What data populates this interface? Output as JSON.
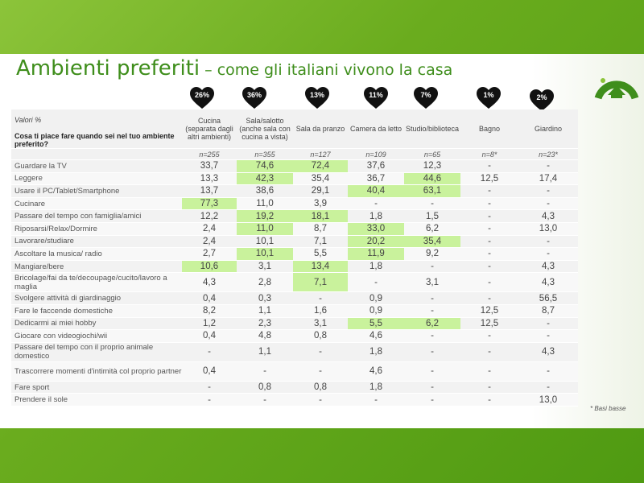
{
  "title": {
    "main": "Ambienti preferiti",
    "sub": " – come gli italiani vivono la casa"
  },
  "logo_colors": {
    "ring": "#3f8e1c",
    "house": "#ffffff"
  },
  "hearts": [
    "26%",
    "36%",
    "13%",
    "11%",
    "7%",
    "1%",
    "2%"
  ],
  "table": {
    "label_header": {
      "valori": "Valori  %",
      "question": "Cosa ti piace fare quando sei nel tuo ambiente preferito?"
    },
    "columns": [
      "Cucina (separata dagli altri ambienti)",
      "Sala/salotto (anche sala con cucina a vista)",
      "Sala da pranzo",
      "Camera da letto",
      "Studio/biblioteca",
      "Bagno",
      "Giardino"
    ],
    "bases": [
      "n=255",
      "n=355",
      "n=127",
      "n=109",
      "n=65",
      "n=8*",
      "n=23*"
    ],
    "rows": [
      {
        "label": "Guardare la TV",
        "values": [
          "33,7",
          "74,6",
          "72,4",
          "37,6",
          "12,3",
          "-",
          "-"
        ],
        "hl": [
          1,
          2
        ]
      },
      {
        "label": "Leggere",
        "values": [
          "13,3",
          "42,3",
          "35,4",
          "36,7",
          "44,6",
          "12,5",
          "17,4"
        ],
        "hl": [
          1,
          4
        ]
      },
      {
        "label": "Usare il PC/Tablet/Smartphone",
        "values": [
          "13,7",
          "38,6",
          "29,1",
          "40,4",
          "63,1",
          "-",
          "-"
        ],
        "hl": [
          3,
          4
        ]
      },
      {
        "label": "Cucinare",
        "values": [
          "77,3",
          "11,0",
          "3,9",
          "-",
          "-",
          "-",
          "-"
        ],
        "hl": [
          0
        ]
      },
      {
        "label": "Passare del tempo con famiglia/amici",
        "values": [
          "12,2",
          "19,2",
          "18,1",
          "1,8",
          "1,5",
          "-",
          "4,3"
        ],
        "hl": [
          1,
          2
        ]
      },
      {
        "label": "Riposarsi/Relax/Dormire",
        "values": [
          "2,4",
          "11,0",
          "8,7",
          "33,0",
          "6,2",
          "-",
          "13,0"
        ],
        "hl": [
          1,
          3
        ]
      },
      {
        "label": "Lavorare/studiare",
        "values": [
          "2,4",
          "10,1",
          "7,1",
          "20,2",
          "35,4",
          "-",
          "-"
        ],
        "hl": [
          3,
          4
        ]
      },
      {
        "label": "Ascoltare la musica/ radio",
        "values": [
          "2,7",
          "10,1",
          "5,5",
          "11,9",
          "9,2",
          "-",
          "-"
        ],
        "hl": [
          1,
          3
        ]
      },
      {
        "label": "Mangiare/bere",
        "values": [
          "10,6",
          "3,1",
          "13,4",
          "1,8",
          "-",
          "-",
          "4,3"
        ],
        "hl": [
          0,
          2
        ]
      },
      {
        "label": "Bricolage/fai da te/decoupage/cucito/lavoro a maglia",
        "values": [
          "4,3",
          "2,8",
          "7,1",
          "-",
          "3,1",
          "-",
          "4,3"
        ],
        "hl": [
          2
        ],
        "tall": true
      },
      {
        "label": "Svolgere attività di giardinaggio",
        "values": [
          "0,4",
          "0,3",
          "-",
          "0,9",
          "-",
          "-",
          "56,5"
        ],
        "hl": []
      },
      {
        "label": "Fare le faccende domestiche",
        "values": [
          "8,2",
          "1,1",
          "1,6",
          "0,9",
          "-",
          "12,5",
          "8,7"
        ],
        "hl": []
      },
      {
        "label": "Dedicarmi ai miei hobby",
        "values": [
          "1,2",
          "2,3",
          "3,1",
          "5,5",
          "6,2",
          "12,5",
          "-"
        ],
        "hl": [
          3,
          4
        ]
      },
      {
        "label": "Giocare con videogiochi/wii",
        "values": [
          "0,4",
          "4,8",
          "0,8",
          "4,6",
          "-",
          "-",
          "-"
        ],
        "hl": []
      },
      {
        "label": "Passare del tempo con il proprio animale domestico",
        "values": [
          "-",
          "1,1",
          "-",
          "1,8",
          "-",
          "-",
          "4,3"
        ],
        "hl": [],
        "tall": true
      },
      {
        "label": "Trascorrere momenti d'intimità col proprio partner",
        "values": [
          "0,4",
          "-",
          "-",
          "4,6",
          "-",
          "-",
          "-"
        ],
        "hl": [],
        "tall": true
      },
      {
        "label": "Fare sport",
        "values": [
          "-",
          "0,8",
          "0,8",
          "1,8",
          "-",
          "-",
          "-"
        ],
        "hl": []
      },
      {
        "label": "Prendere il sole",
        "values": [
          "-",
          "-",
          "-",
          "-",
          "-",
          "-",
          "13,0"
        ],
        "hl": []
      }
    ]
  },
  "footnote": "* Basi basse"
}
